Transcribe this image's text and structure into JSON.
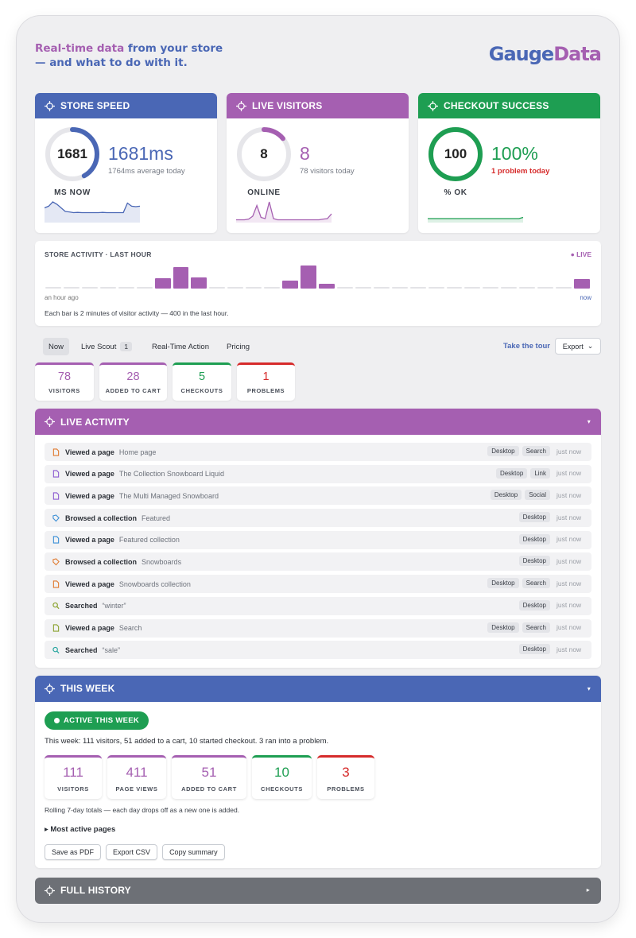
{
  "hero": {
    "tagline_a": "Real-time data",
    "tagline_b": " from your store",
    "tagline_c": "— and what to do with it.",
    "logo_a": "Gauge",
    "logo_b": "Data"
  },
  "colors": {
    "blue": "#4a67b5",
    "purple": "#a55fb1",
    "green": "#1e9e52",
    "red": "#d62b2b",
    "gray": "#6d7076"
  },
  "cards": [
    {
      "title": "STORE SPEED",
      "ring_value": "1681",
      "ring_label": "MS NOW",
      "big": "1681ms",
      "sub": "1764ms average today",
      "gauge": 0.42,
      "color": "#4a67b5",
      "sparkline": [
        0.55,
        0.62,
        0.8,
        0.7,
        0.55,
        0.4,
        0.38,
        0.35,
        0.36,
        0.35,
        0.35,
        0.35,
        0.35,
        0.35,
        0.36,
        0.35,
        0.35,
        0.35,
        0.35,
        0.35,
        0.75,
        0.62,
        0.6,
        0.62
      ]
    },
    {
      "title": "LIVE VISITORS",
      "ring_value": "8",
      "ring_label": "ONLINE",
      "big": "8",
      "sub": "78 visitors today",
      "gauge": 0.14,
      "color": "#a55fb1",
      "sparkline": [
        0.05,
        0.05,
        0.05,
        0.08,
        0.2,
        0.65,
        0.15,
        0.1,
        0.8,
        0.1,
        0.05,
        0.05,
        0.05,
        0.05,
        0.05,
        0.05,
        0.05,
        0.05,
        0.05,
        0.05,
        0.05,
        0.08,
        0.1,
        0.3
      ]
    },
    {
      "title": "CHECKOUT SUCCESS",
      "ring_value": "100",
      "ring_label": "% OK",
      "big": "100%",
      "sub": "1 problem today",
      "gauge": 1.0,
      "color": "#1e9e52",
      "sub_warn": true,
      "sparkline": [
        0.1,
        0.1,
        0.1,
        0.1,
        0.1,
        0.1,
        0.1,
        0.1,
        0.1,
        0.1,
        0.1,
        0.1,
        0.1,
        0.1,
        0.1,
        0.1,
        0.1,
        0.1,
        0.1,
        0.1,
        0.1,
        0.1,
        0.1,
        0.15
      ]
    }
  ],
  "activity": {
    "title": "STORE ACTIVITY · LAST HOUR",
    "live": "● LIVE",
    "left_label": "an hour ago",
    "right_label": "now",
    "note": "Each bar is 2 minutes of visitor activity — 400 in the last hour.",
    "bars": [
      0,
      0,
      0,
      0,
      0,
      0,
      0.32,
      0.75,
      0.35,
      0,
      0,
      0,
      0,
      0.25,
      0.8,
      0.12,
      0,
      0,
      0,
      0,
      0,
      0,
      0,
      0,
      0,
      0,
      0,
      0,
      0,
      0.28
    ]
  },
  "tabs": {
    "now": "Now",
    "scout": "Live Scout",
    "scout_count": "1",
    "action": "Real-Time Action",
    "pricing": "Pricing",
    "tour": "Take the tour",
    "export": "Export"
  },
  "tiles": [
    {
      "value": "78",
      "label": "VISITORS",
      "color": "#a55fb1"
    },
    {
      "value": "28",
      "label": "ADDED TO CART",
      "color": "#a55fb1"
    },
    {
      "value": "5",
      "label": "CHECKOUTS",
      "color": "#1e9e52"
    },
    {
      "value": "1",
      "label": "PROBLEMS",
      "color": "#d62b2b"
    }
  ],
  "live_activity": {
    "title": "LIVE ACTIVITY",
    "rows": [
      {
        "icon": "page-icon",
        "icon_color": "#e07a2e",
        "action": "Viewed a page",
        "target": "Home page",
        "chips": [
          "Desktop",
          "Search"
        ],
        "when": "just now"
      },
      {
        "icon": "page-icon",
        "icon_color": "#8c5bd0",
        "action": "Viewed a page",
        "target": "The Collection Snowboard Liquid",
        "chips": [
          "Desktop",
          "Link"
        ],
        "when": "just now"
      },
      {
        "icon": "page-icon",
        "icon_color": "#8c5bd0",
        "action": "Viewed a page",
        "target": "The Multi Managed Snowboard",
        "chips": [
          "Desktop",
          "Social"
        ],
        "when": "just now"
      },
      {
        "icon": "tag-icon",
        "icon_color": "#3a8fd6",
        "action": "Browsed a collection",
        "target": "Featured",
        "chips": [
          "Desktop"
        ],
        "when": "just now"
      },
      {
        "icon": "page-icon",
        "icon_color": "#3a8fd6",
        "action": "Viewed a page",
        "target": "Featured collection",
        "chips": [
          "Desktop"
        ],
        "when": "just now"
      },
      {
        "icon": "tag-icon",
        "icon_color": "#e07a2e",
        "action": "Browsed a collection",
        "target": "Snowboards",
        "chips": [
          "Desktop"
        ],
        "when": "just now"
      },
      {
        "icon": "page-icon",
        "icon_color": "#e07a2e",
        "action": "Viewed a page",
        "target": "Snowboards collection",
        "chips": [
          "Desktop",
          "Search"
        ],
        "when": "just now"
      },
      {
        "icon": "search-icon",
        "icon_color": "#8aa22e",
        "action": "Searched",
        "target": "“winter”",
        "chips": [
          "Desktop"
        ],
        "when": "just now"
      },
      {
        "icon": "page-icon",
        "icon_color": "#8aa22e",
        "action": "Viewed a page",
        "target": "Search",
        "chips": [
          "Desktop",
          "Search"
        ],
        "when": "just now"
      },
      {
        "icon": "search-icon",
        "icon_color": "#2aa6a0",
        "action": "Searched",
        "target": "“sale”",
        "chips": [
          "Desktop"
        ],
        "when": "just now"
      }
    ]
  },
  "this_week": {
    "title": "THIS WEEK",
    "pill": "ACTIVE THIS WEEK",
    "summary": "This week: 111 visitors, 51 added to a cart, 10 started checkout. 3 ran into a problem.",
    "tiles": [
      {
        "value": "111",
        "label": "VISITORS",
        "color": "#a55fb1",
        "width": 72
      },
      {
        "value": "411",
        "label": "PAGE VIEWS",
        "color": "#a55fb1",
        "width": 74
      },
      {
        "value": "51",
        "label": "ADDED TO CART",
        "color": "#a55fb1",
        "width": 94
      },
      {
        "value": "10",
        "label": "CHECKOUTS",
        "color": "#1e9e52",
        "width": 75
      },
      {
        "value": "3",
        "label": "PROBLEMS",
        "color": "#d62b2b",
        "width": 72
      }
    ],
    "rolling": "Rolling 7-day totals — each day drops off as a new one is added.",
    "details": "▸ Most active pages",
    "buttons": [
      "Save as PDF",
      "Export CSV",
      "Copy summary"
    ]
  },
  "history": {
    "title": "FULL HISTORY"
  }
}
